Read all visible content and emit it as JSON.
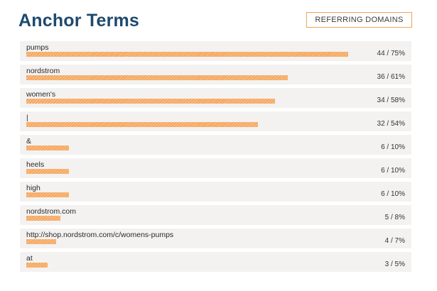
{
  "header": {
    "title": "Anchor Terms",
    "toggle_label": "REFERRING DOMAINS"
  },
  "colors": {
    "title": "#1e4a6e",
    "bar": "#f6a65c",
    "row_background": "#f3f2f1",
    "button_border": "#f3a35a"
  },
  "terms": [
    {
      "term": "pumps",
      "count": 44,
      "percent": 75,
      "value_text": "44 / 75%"
    },
    {
      "term": "nordstrom",
      "count": 36,
      "percent": 61,
      "value_text": "36 / 61%"
    },
    {
      "term": "women's",
      "count": 34,
      "percent": 58,
      "value_text": "34 / 58%"
    },
    {
      "term": "|",
      "count": 32,
      "percent": 54,
      "value_text": "32 / 54%"
    },
    {
      "term": "&",
      "count": 6,
      "percent": 10,
      "value_text": "6 / 10%"
    },
    {
      "term": "heels",
      "count": 6,
      "percent": 10,
      "value_text": "6 / 10%"
    },
    {
      "term": "high",
      "count": 6,
      "percent": 10,
      "value_text": "6 / 10%"
    },
    {
      "term": "nordstrom.com",
      "count": 5,
      "percent": 8,
      "value_text": "5 / 8%"
    },
    {
      "term": "http://shop.nordstrom.com/c/womens-pumps",
      "count": 4,
      "percent": 7,
      "value_text": "4 / 7%"
    },
    {
      "term": "at",
      "count": 3,
      "percent": 5,
      "value_text": "3 / 5%"
    }
  ]
}
